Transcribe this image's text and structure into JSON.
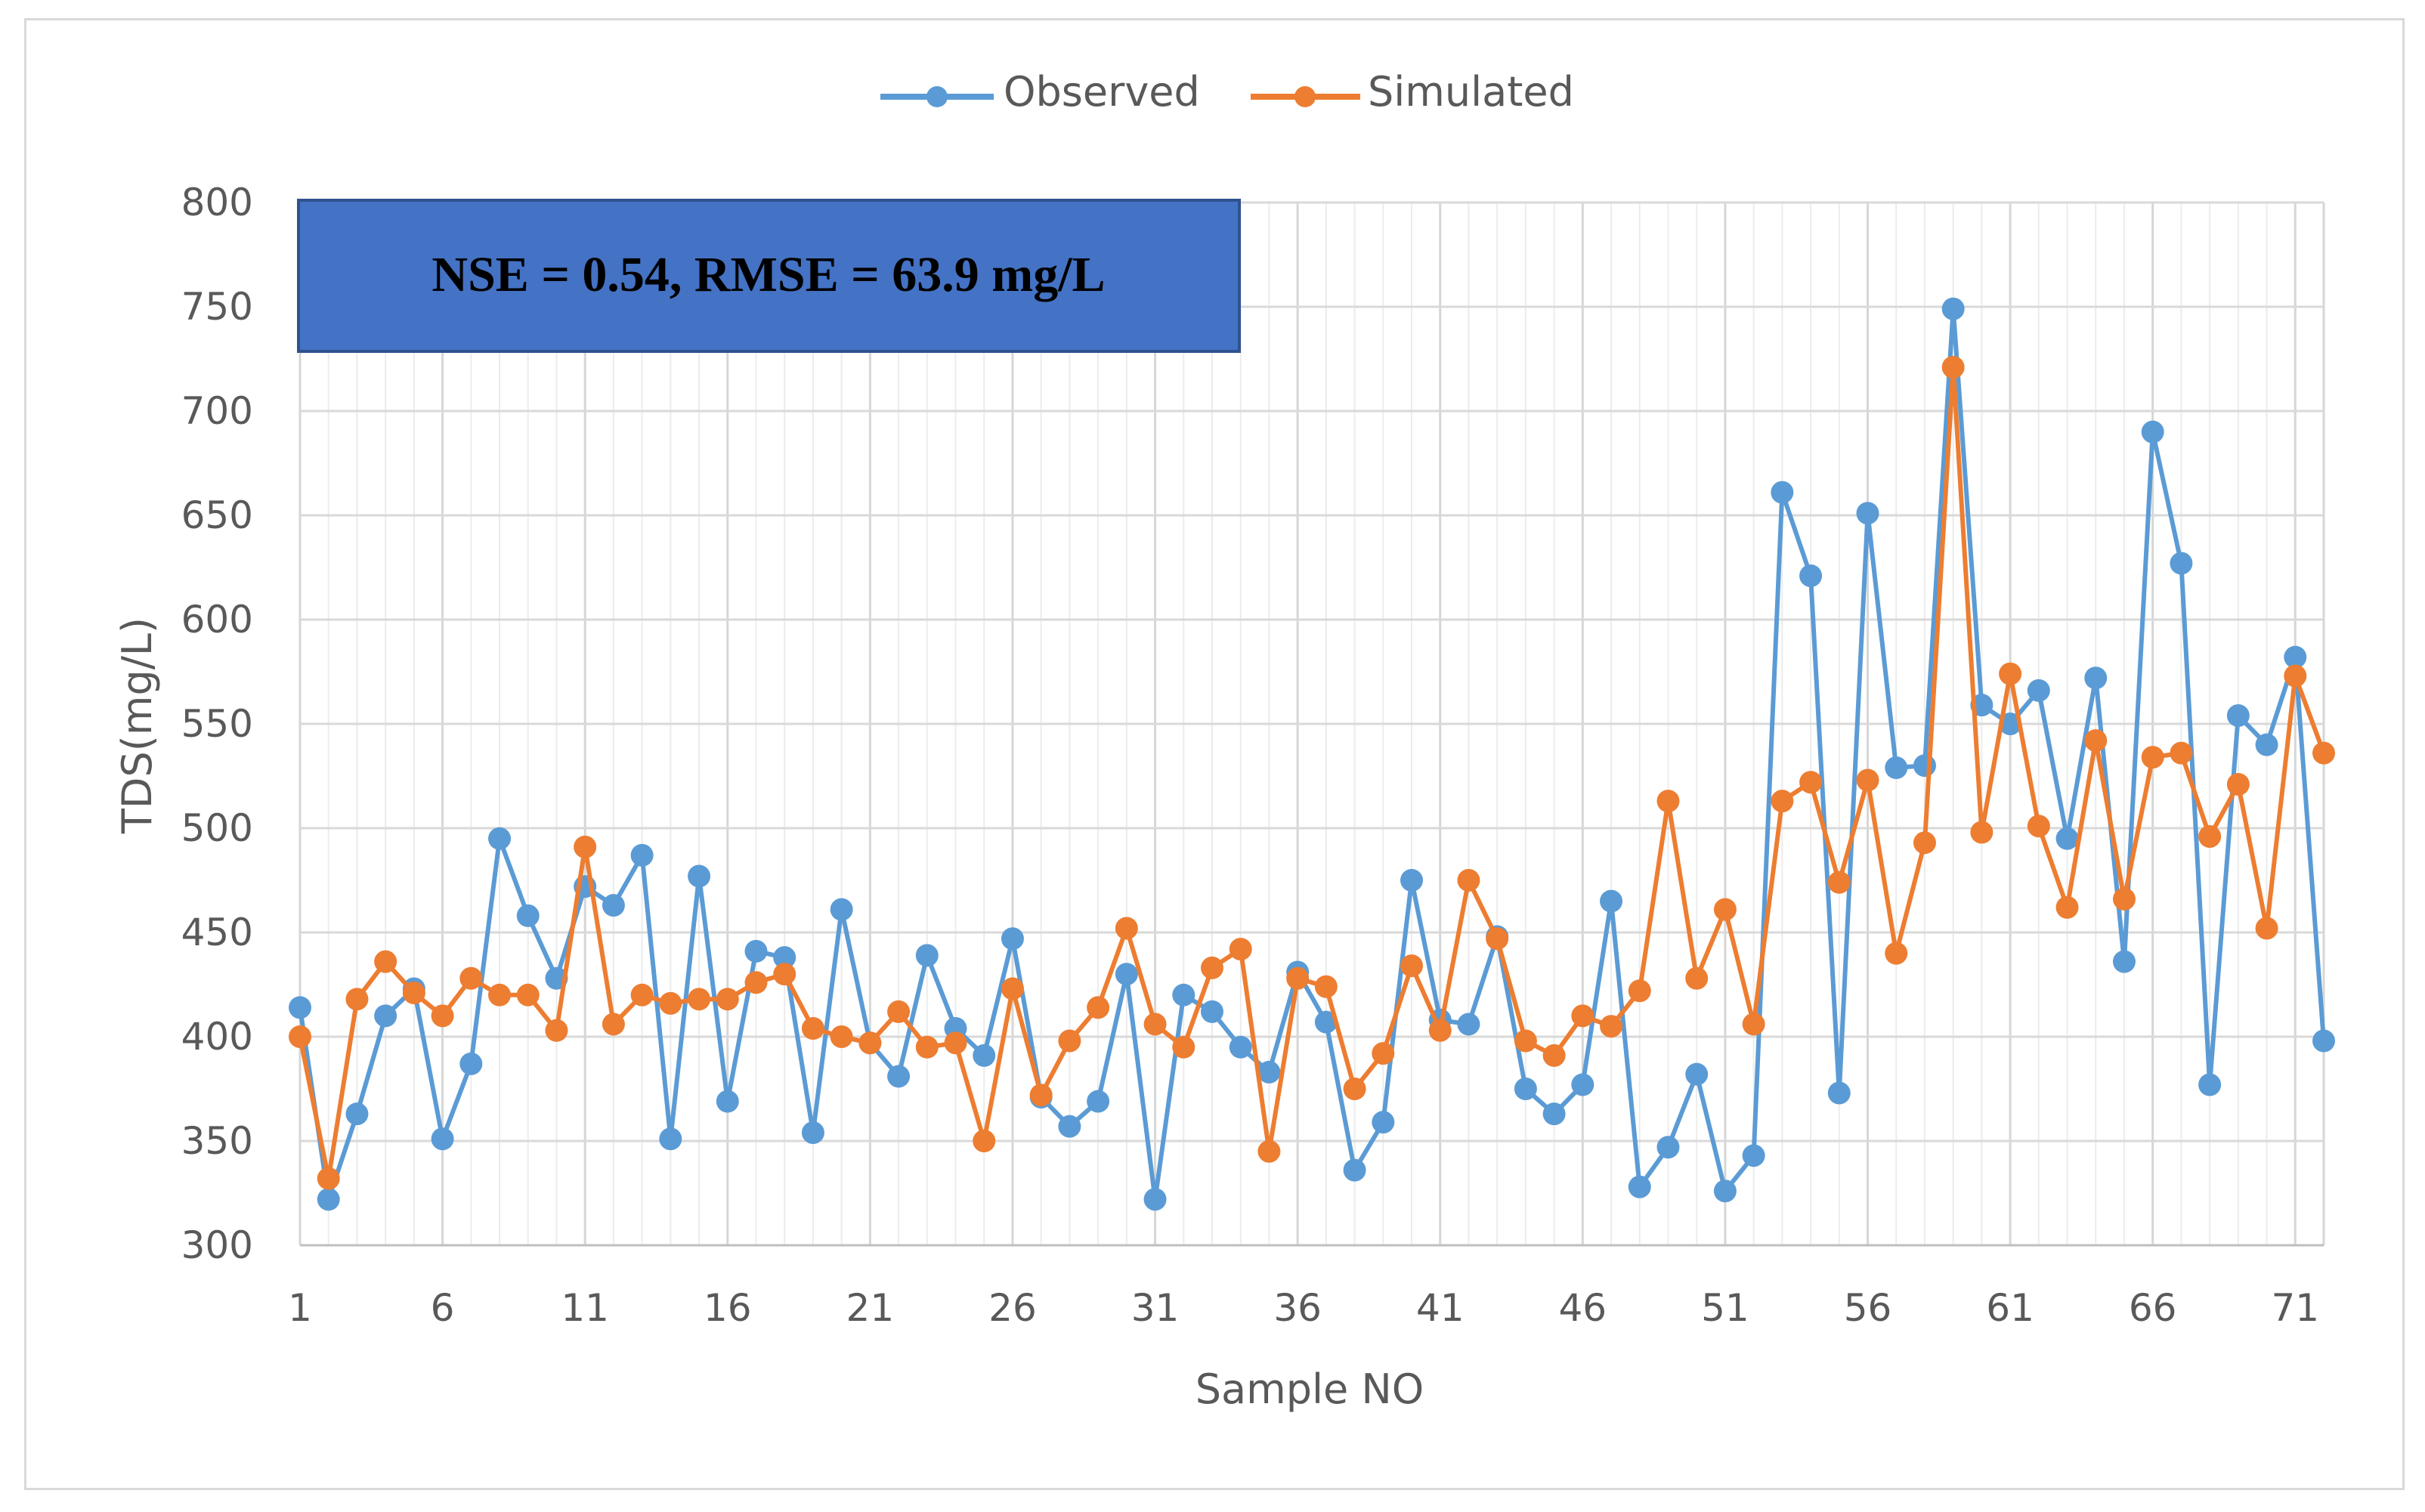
{
  "chart_data": {
    "type": "line",
    "xlabel": "Sample NO",
    "ylabel": "TDS(mg/L)",
    "ylim": [
      300,
      800
    ],
    "yticks": [
      300,
      350,
      400,
      450,
      500,
      550,
      600,
      650,
      700,
      750,
      800
    ],
    "xlim": [
      1,
      72
    ],
    "xtick_labels": [
      "1",
      "6",
      "11",
      "16",
      "21",
      "26",
      "31",
      "36",
      "41",
      "46",
      "51",
      "56",
      "61",
      "66",
      "71"
    ],
    "grid": true,
    "legend_position": "top-center",
    "annotation": "NSE = 0.54, RMSE = 63.9 mg/L",
    "annotation_color": "#4472C4",
    "series": [
      {
        "name": "Observed",
        "color": "#5B9BD5",
        "values": [
          414,
          322,
          363,
          410,
          423,
          351,
          387,
          495,
          458,
          428,
          472,
          463,
          487,
          351,
          477,
          369,
          441,
          438,
          354,
          461,
          397,
          381,
          439,
          404,
          391,
          447,
          371,
          357,
          369,
          430,
          322,
          420,
          412,
          395,
          383,
          431,
          407,
          336,
          359,
          475,
          408,
          406,
          448,
          375,
          363,
          377,
          465,
          328,
          347,
          382,
          326,
          343,
          661,
          621,
          373,
          651,
          529,
          530,
          749,
          559,
          550,
          566,
          495,
          572,
          436,
          690,
          627,
          377,
          554,
          540,
          582,
          398
        ]
      },
      {
        "name": "Simulated",
        "color": "#ED7D31",
        "values": [
          400,
          332,
          418,
          436,
          421,
          410,
          428,
          420,
          420,
          403,
          491,
          406,
          420,
          416,
          418,
          418,
          426,
          430,
          404,
          400,
          397,
          412,
          395,
          397,
          350,
          423,
          372,
          398,
          414,
          452,
          406,
          395,
          433,
          442,
          345,
          428,
          424,
          375,
          392,
          434,
          403,
          475,
          447,
          398,
          391,
          410,
          405,
          422,
          513,
          428,
          461,
          406,
          513,
          522,
          474,
          523,
          440,
          493,
          721,
          498,
          574,
          501,
          462,
          542,
          466,
          534,
          536,
          496,
          521,
          452,
          573,
          536
        ]
      }
    ]
  }
}
